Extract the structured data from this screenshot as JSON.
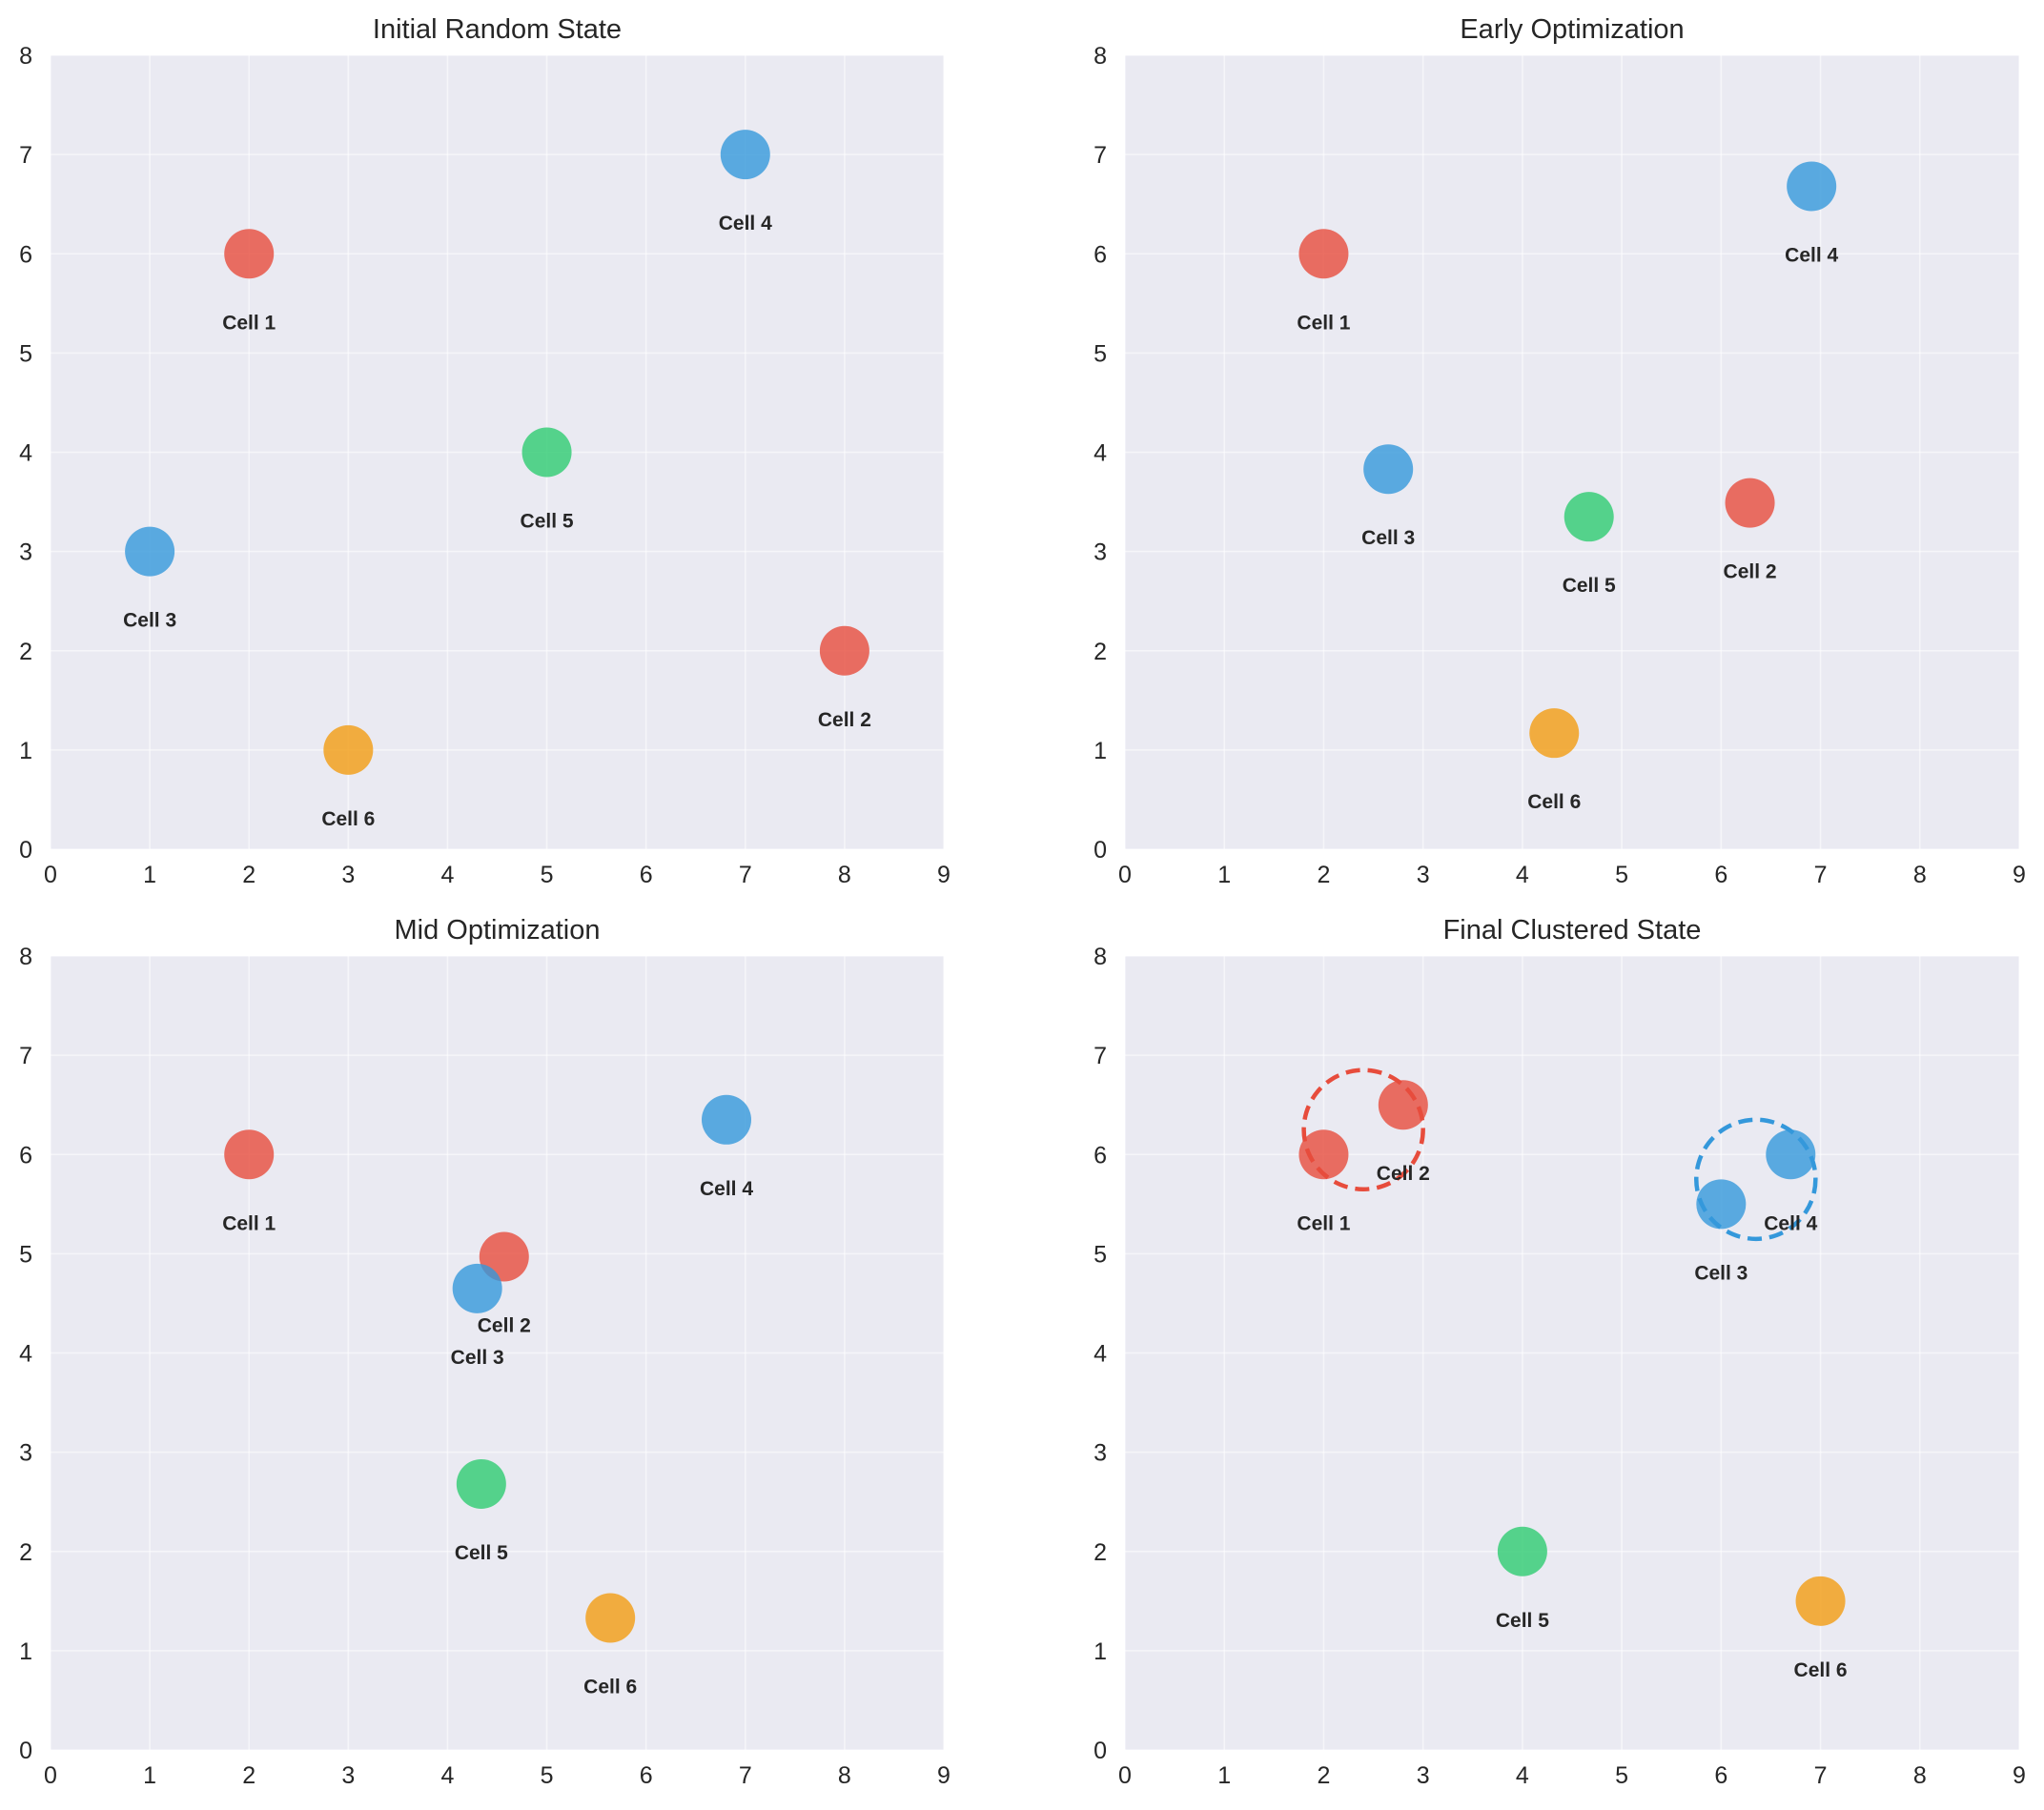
{
  "figure": {
    "background": "#ffffff",
    "panel_background": "#EAEAF2"
  },
  "colors": {
    "red": "#E74C3C",
    "blue": "#3498DB",
    "green": "#2ECC71",
    "orange": "#F39C12"
  },
  "chart_data": [
    {
      "type": "scatter",
      "title": "Initial Random State",
      "xlim": [
        0,
        9
      ],
      "ylim": [
        0,
        8
      ],
      "xticks": [
        "0",
        "1",
        "2",
        "3",
        "4",
        "5",
        "6",
        "7",
        "8",
        "9"
      ],
      "yticks": [
        "0",
        "1",
        "2",
        "3",
        "4",
        "5",
        "6",
        "7",
        "8"
      ],
      "grid": true,
      "points": [
        {
          "label": "Cell 1",
          "x": 2.0,
          "y": 6.0,
          "color": "red"
        },
        {
          "label": "Cell 2",
          "x": 8.0,
          "y": 2.0,
          "color": "red"
        },
        {
          "label": "Cell 3",
          "x": 1.0,
          "y": 3.0,
          "color": "blue"
        },
        {
          "label": "Cell 4",
          "x": 7.0,
          "y": 7.0,
          "color": "blue"
        },
        {
          "label": "Cell 5",
          "x": 5.0,
          "y": 4.0,
          "color": "green"
        },
        {
          "label": "Cell 6",
          "x": 3.0,
          "y": 1.0,
          "color": "orange"
        }
      ],
      "clusters": []
    },
    {
      "type": "scatter",
      "title": "Early Optimization",
      "xlim": [
        0,
        9
      ],
      "ylim": [
        0,
        8
      ],
      "xticks": [
        "0",
        "1",
        "2",
        "3",
        "4",
        "5",
        "6",
        "7",
        "8",
        "9"
      ],
      "yticks": [
        "0",
        "1",
        "2",
        "3",
        "4",
        "5",
        "6",
        "7",
        "8"
      ],
      "grid": true,
      "points": [
        {
          "label": "Cell 1",
          "x": 2.0,
          "y": 6.0,
          "color": "red"
        },
        {
          "label": "Cell 2",
          "x": 6.29,
          "y": 3.49,
          "color": "red"
        },
        {
          "label": "Cell 3",
          "x": 2.65,
          "y": 3.83,
          "color": "blue"
        },
        {
          "label": "Cell 4",
          "x": 6.91,
          "y": 6.68,
          "color": "blue"
        },
        {
          "label": "Cell 5",
          "x": 4.67,
          "y": 3.35,
          "color": "green"
        },
        {
          "label": "Cell 6",
          "x": 4.32,
          "y": 1.17,
          "color": "orange"
        }
      ],
      "clusters": []
    },
    {
      "type": "scatter",
      "title": "Mid Optimization",
      "xlim": [
        0,
        9
      ],
      "ylim": [
        0,
        8
      ],
      "xticks": [
        "0",
        "1",
        "2",
        "3",
        "4",
        "5",
        "6",
        "7",
        "8",
        "9"
      ],
      "yticks": [
        "0",
        "1",
        "2",
        "3",
        "4",
        "5",
        "6",
        "7",
        "8"
      ],
      "grid": true,
      "points": [
        {
          "label": "Cell 1",
          "x": 2.0,
          "y": 6.0,
          "color": "red"
        },
        {
          "label": "Cell 2",
          "x": 4.57,
          "y": 4.97,
          "color": "red"
        },
        {
          "label": "Cell 3",
          "x": 4.3,
          "y": 4.65,
          "color": "blue"
        },
        {
          "label": "Cell 4",
          "x": 6.81,
          "y": 6.35,
          "color": "blue"
        },
        {
          "label": "Cell 5",
          "x": 4.34,
          "y": 2.68,
          "color": "green"
        },
        {
          "label": "Cell 6",
          "x": 5.64,
          "y": 1.33,
          "color": "orange"
        }
      ],
      "clusters": []
    },
    {
      "type": "scatter",
      "title": "Final Clustered State",
      "xlim": [
        0,
        9
      ],
      "ylim": [
        0,
        8
      ],
      "xticks": [
        "0",
        "1",
        "2",
        "3",
        "4",
        "5",
        "6",
        "7",
        "8",
        "9"
      ],
      "yticks": [
        "0",
        "1",
        "2",
        "3",
        "4",
        "5",
        "6",
        "7",
        "8"
      ],
      "grid": true,
      "points": [
        {
          "label": "Cell 1",
          "x": 2.0,
          "y": 6.0,
          "color": "red"
        },
        {
          "label": "Cell 2",
          "x": 2.8,
          "y": 6.5,
          "color": "red"
        },
        {
          "label": "Cell 3",
          "x": 6.0,
          "y": 5.5,
          "color": "blue"
        },
        {
          "label": "Cell 4",
          "x": 6.7,
          "y": 6.0,
          "color": "blue"
        },
        {
          "label": "Cell 5",
          "x": 4.0,
          "y": 2.0,
          "color": "green"
        },
        {
          "label": "Cell 6",
          "x": 7.0,
          "y": 1.5,
          "color": "orange"
        }
      ],
      "clusters": [
        {
          "name": "red-cluster",
          "cx": 2.4,
          "cy": 6.25,
          "r": 0.6,
          "color": "red",
          "style": "dashed"
        },
        {
          "name": "blue-cluster",
          "cx": 6.35,
          "cy": 5.75,
          "r": 0.6,
          "color": "blue",
          "style": "dashed"
        }
      ]
    }
  ]
}
